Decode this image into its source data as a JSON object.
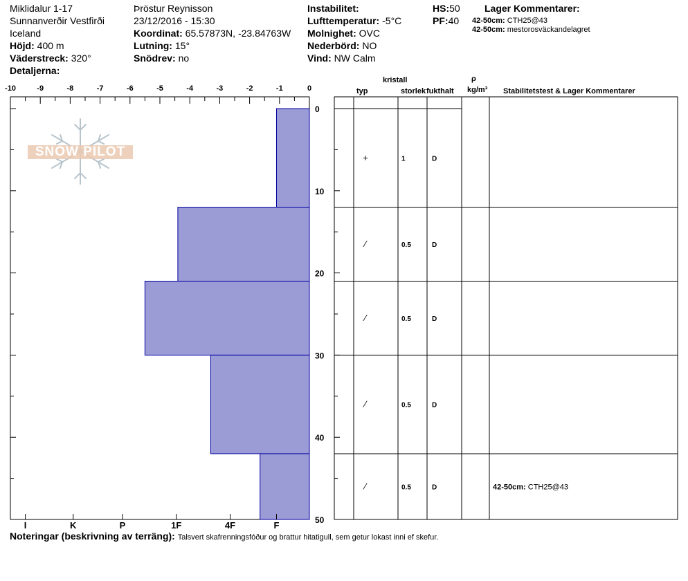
{
  "header": {
    "location": "Miklidalur 1-17",
    "region": "Sunnanverðir Vestfirði",
    "country": "Iceland",
    "elevation_label": "Höjd:",
    "elevation_value": "400 m",
    "aspect_label": "Väderstreck:",
    "aspect_value": "320°",
    "details_label": "Detaljerna:",
    "observer": "Þröstur Reynisson",
    "datetime": "23/12/2016 - 15:30",
    "coord_label": "Koordinat:",
    "coord_value": "65.57873N, -23.84763W",
    "slope_label": "Lutning:",
    "slope_value": "15°",
    "drift_label": "Snödrev:",
    "drift_value": "no",
    "instability_label": "Instabilitet:",
    "air_temp_label": "Lufttemperatur:",
    "air_temp_value": "-5°C",
    "sky_label": "Molnighet:",
    "sky_value": "OVC",
    "precip_label": "Nederbörd:",
    "precip_value": "NO",
    "wind_label": "Vind:",
    "wind_value": "NW Calm",
    "hs_label": "HS:",
    "hs_value": "50",
    "pf_label": "PF:",
    "pf_value": "40",
    "layer_comments_label": "Lager Kommentarer:",
    "layer_comments": [
      {
        "range": "42-50cm:",
        "text": "CTH25@43"
      },
      {
        "range": "42-50cm:",
        "text": "mestorosväckandelagret"
      }
    ]
  },
  "logo_text": "SNOW PILOT",
  "columns": {
    "crystal": "kristall",
    "type": "typ",
    "size": "storlek",
    "moisture": "fukthalt",
    "rho": "ρ",
    "density_unit": "kg/m³",
    "stability": "Stabilitetstest & Lager Kommentarer"
  },
  "footer": {
    "notes_label": "Noteringar (beskrivning av terräng):",
    "notes_text": "Talsvert skafrenningsfóður og brattur hitatigull, sem getur lokast inni ef skefur."
  },
  "chart_data": {
    "type": "bar",
    "orientation": "horizontal",
    "x_ticks": [
      "-10",
      "-9",
      "-8",
      "-7",
      "-6",
      "-5",
      "-4",
      "-3",
      "-2",
      "-1",
      "0"
    ],
    "x_range": [
      -10,
      0
    ],
    "hardness_ticks": [
      {
        "label": "I",
        "value": -9.5
      },
      {
        "label": "K",
        "value": -7.9
      },
      {
        "label": "P",
        "value": -6.25
      },
      {
        "label": "1F",
        "value": -4.45
      },
      {
        "label": "4F",
        "value": -2.65
      },
      {
        "label": "F",
        "value": -1.1
      }
    ],
    "depth_ticks": [
      "0",
      "10",
      "20",
      "30",
      "40",
      "50"
    ],
    "depth_range": [
      0,
      50
    ],
    "bar_color": "#9b9bd6",
    "bar_edge": "#0000a0",
    "layers": [
      {
        "top": 0,
        "bottom": 12,
        "hardness": -1.1,
        "type": "+",
        "size": "1",
        "moisture": "D"
      },
      {
        "top": 12,
        "bottom": 21,
        "hardness": -4.4,
        "type": "⁄",
        "size": "0.5",
        "moisture": "D"
      },
      {
        "top": 21,
        "bottom": 30,
        "hardness": -5.5,
        "type": "⁄",
        "size": "0.5",
        "moisture": "D"
      },
      {
        "top": 30,
        "bottom": 42,
        "hardness": -3.3,
        "type": "⁄",
        "size": "0.5",
        "moisture": "D"
      },
      {
        "top": 42,
        "bottom": 50,
        "hardness": -1.65,
        "type": "⁄",
        "size": "0.5",
        "moisture": "D"
      }
    ],
    "stability_notes": [
      {
        "depth": 46,
        "range": "42-50cm:",
        "text": "CTH25@43"
      }
    ]
  }
}
